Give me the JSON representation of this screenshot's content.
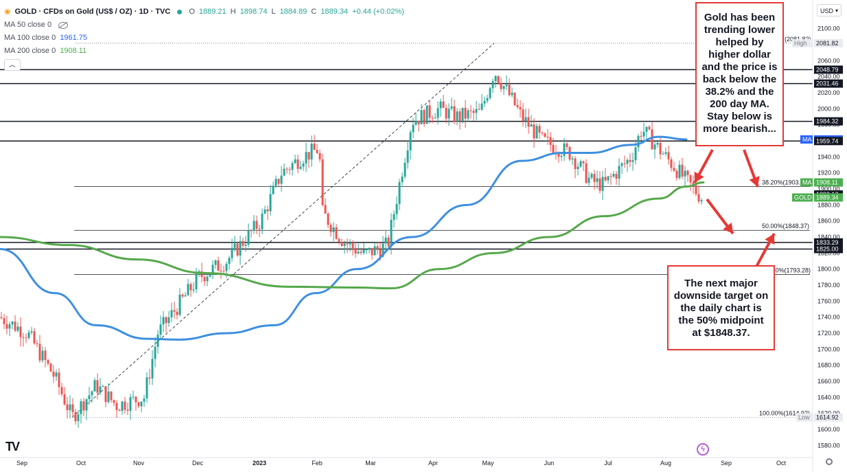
{
  "legend": {
    "symbol": "GOLD · CFDs on Gold (US$ / OZ) · 1D · TVC",
    "ohlc": [
      {
        "k": "O",
        "v": "1889.21"
      },
      {
        "k": "H",
        "v": "1898.74"
      },
      {
        "k": "L",
        "v": "1884.89"
      },
      {
        "k": "C",
        "v": "1889.34"
      }
    ],
    "change": "+0.44 (+0.02%)",
    "ma50_label": "MA 50 close 0",
    "ma100_label": "MA 100 close 0",
    "ma100_value": "1961.75",
    "ma200_label": "MA 200 close 0",
    "ma200_value": "1908.11",
    "collapse_icon": "chevron-up-icon"
  },
  "currency": "USD",
  "callouts": {
    "top": "Gold has been trending lower helped by higher dollar and the price is back below the 38.2% and the 200 day MA. Stay below is more bearish...",
    "bottom": "The next major downside target on the daily chart is the 50% midpoint at $1848.37."
  },
  "branding": "TV",
  "colors": {
    "up": "#26a69a",
    "down": "#ef5350",
    "ma100": "#3d8fe0",
    "ma200": "#55a84a",
    "annotation": "#e53935"
  },
  "chart_data": {
    "type": "candlestick",
    "title": "GOLD · CFDs on Gold (US$ / OZ) · 1D · TVC",
    "ylim": [
      1570,
      2110
    ],
    "y_ticks": [
      1580,
      1600,
      1620,
      1640,
      1660,
      1680,
      1700,
      1720,
      1740,
      1760,
      1780,
      1800,
      1820,
      1840,
      1860,
      1880,
      1900,
      1920,
      1940,
      1960,
      1980,
      2000,
      2020,
      2040,
      2060,
      2080,
      2100
    ],
    "x_ticks": [
      "Sep",
      "Oct",
      "Nov",
      "Dec",
      "2023",
      "Feb",
      "Mar",
      "Apr",
      "May",
      "Jun",
      "Jul",
      "Aug",
      "Sep",
      "Oct"
    ],
    "horizontal_levels": [
      2081.82,
      2048.79,
      2031.46,
      1984.32,
      1959.74,
      1833.29,
      1825.0
    ],
    "fibonacci": [
      {
        "label": "38.20%(1903.",
        "value": 1903
      },
      {
        "label": "50.00%(1848.37)",
        "value": 1848.37
      },
      {
        "label": ".0%(1793.28)",
        "value": 1793.28
      },
      {
        "label": "100.00%(1614.92)",
        "value": 1614.92
      },
      {
        "label": "(2081.82)",
        "value": 2081.82
      }
    ],
    "price_tags": [
      {
        "label": "High",
        "value": "2081.82",
        "style": "plain"
      },
      {
        "label": "",
        "value": "2048.79",
        "style": "dark"
      },
      {
        "label": "",
        "value": "2031.46",
        "style": "dark"
      },
      {
        "label": "",
        "value": "1984.32",
        "style": "dark"
      },
      {
        "label": "MA",
        "value": "1961.75",
        "style": "blue"
      },
      {
        "label": "",
        "value": "1959.74",
        "style": "dark"
      },
      {
        "label": "MA",
        "value": "1908.11",
        "style": "green"
      },
      {
        "label": "",
        "value": "1893.12",
        "style": "dark"
      },
      {
        "label": "GOLD",
        "value": "1889.34",
        "style": "green"
      },
      {
        "label": "",
        "value": "1833.29",
        "style": "dark"
      },
      {
        "label": "",
        "value": "1825.00",
        "style": "dark"
      },
      {
        "label": "Low",
        "value": "1614.92",
        "style": "plain"
      }
    ],
    "series": [
      {
        "name": "MA 100 close 0",
        "anchors": [
          [
            0,
            1825
          ],
          [
            80,
            1770
          ],
          [
            140,
            1730
          ],
          [
            215,
            1713
          ],
          [
            260,
            1712
          ],
          [
            330,
            1720
          ],
          [
            400,
            1730
          ],
          [
            460,
            1770
          ],
          [
            520,
            1800
          ],
          [
            600,
            1840
          ],
          [
            680,
            1880
          ],
          [
            760,
            1935
          ],
          [
            820,
            1945
          ],
          [
            860,
            1945
          ],
          [
            920,
            1955
          ],
          [
            960,
            1965
          ],
          [
            1000,
            1961.75
          ]
        ]
      },
      {
        "name": "MA 200 close 0",
        "anchors": [
          [
            0,
            1840
          ],
          [
            100,
            1830
          ],
          [
            200,
            1812
          ],
          [
            300,
            1795
          ],
          [
            420,
            1778
          ],
          [
            520,
            1777
          ],
          [
            570,
            1776
          ],
          [
            640,
            1800
          ],
          [
            720,
            1820
          ],
          [
            800,
            1840
          ],
          [
            880,
            1866
          ],
          [
            960,
            1888
          ],
          [
            1000,
            1903
          ],
          [
            1025,
            1908.11
          ]
        ]
      }
    ],
    "candle_path": [
      [
        0,
        1740
      ],
      [
        40,
        1720
      ],
      [
        80,
        1665
      ],
      [
        105,
        1615
      ],
      [
        140,
        1655
      ],
      [
        170,
        1630
      ],
      [
        210,
        1640
      ],
      [
        230,
        1720
      ],
      [
        290,
        1790
      ],
      [
        330,
        1810
      ],
      [
        380,
        1860
      ],
      [
        410,
        1920
      ],
      [
        440,
        1940
      ],
      [
        465,
        1950
      ],
      [
        470,
        1870
      ],
      [
        500,
        1835
      ],
      [
        530,
        1818
      ],
      [
        565,
        1830
      ],
      [
        585,
        1920
      ],
      [
        600,
        1985
      ],
      [
        640,
        2000
      ],
      [
        665,
        1990
      ],
      [
        700,
        1995
      ],
      [
        720,
        2047
      ],
      [
        740,
        2020
      ],
      [
        760,
        1990
      ],
      [
        790,
        1960
      ],
      [
        830,
        1945
      ],
      [
        860,
        1910
      ],
      [
        880,
        1905
      ],
      [
        920,
        1940
      ],
      [
        935,
        1975
      ],
      [
        960,
        1950
      ],
      [
        1000,
        1910
      ],
      [
        1022,
        1889.34
      ]
    ],
    "trendline": [
      [
        105,
        1614.92
      ],
      [
        720,
        2081.82
      ]
    ],
    "red_arrows": "four annotation arrows"
  }
}
